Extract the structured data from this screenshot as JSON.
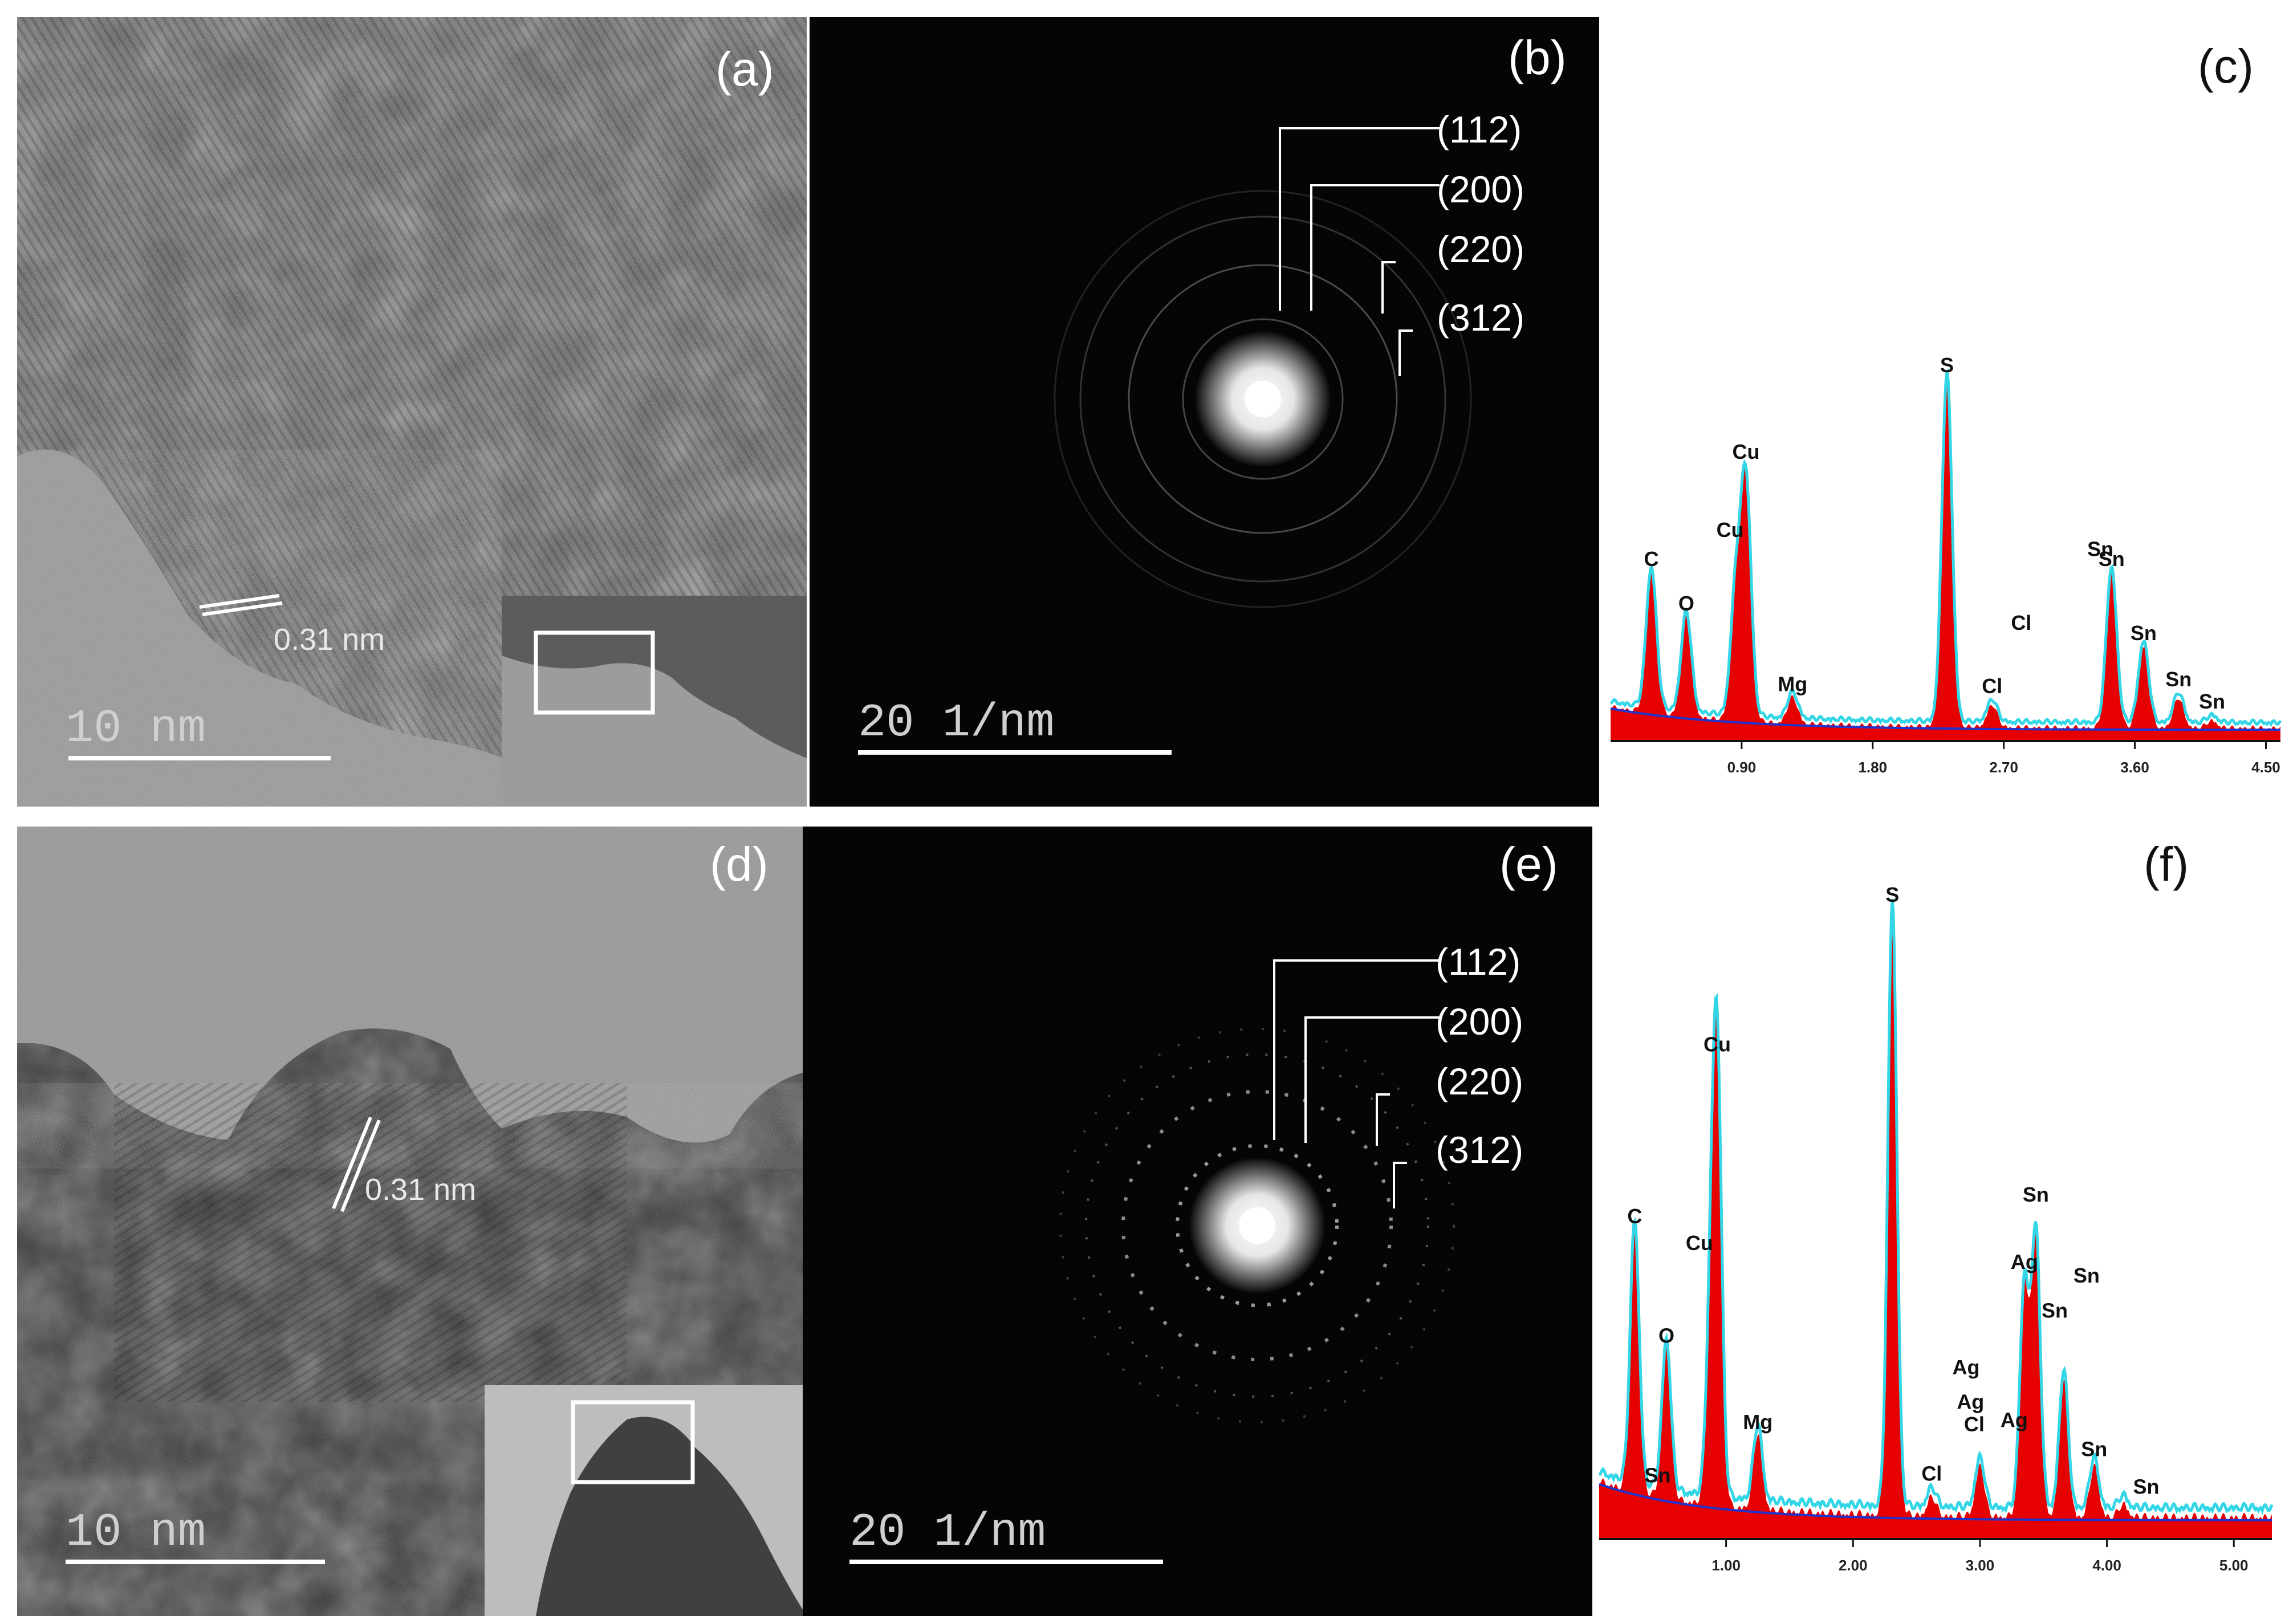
{
  "panels": {
    "a": {
      "letter": "(a)",
      "scale_bar": "10 nm",
      "lattice": "0.31 nm"
    },
    "b": {
      "letter": "(b)",
      "scale_bar": "20 1/nm",
      "rings": [
        "(112)",
        "(200)",
        "(220)",
        "(312)"
      ]
    },
    "c": {
      "letter": "(c)"
    },
    "d": {
      "letter": "(d)",
      "scale_bar": "10 nm",
      "lattice": "0.31 nm"
    },
    "e": {
      "letter": "(e)",
      "scale_bar": "20 1/nm",
      "rings": [
        "(112)",
        "(200)",
        "(220)",
        "(312)"
      ]
    },
    "f": {
      "letter": "(f)"
    }
  },
  "chart_data": [
    {
      "type": "line",
      "panel": "(c)",
      "xlim": [
        0.0,
        4.6
      ],
      "ylim": [
        0,
        100
      ],
      "xticks": [
        "0.90",
        "1.80",
        "2.70",
        "3.60",
        "4.50"
      ],
      "xtick_values": [
        0.9,
        1.8,
        2.7,
        3.6,
        4.5
      ],
      "peaks": [
        {
          "label": "C",
          "x": 0.28,
          "height": 38
        },
        {
          "label": "O",
          "x": 0.52,
          "height": 27
        },
        {
          "label": "Cu",
          "x": 0.93,
          "height": 63
        },
        {
          "label": "Cu",
          "x": 0.86,
          "height": 34
        },
        {
          "label": "Mg",
          "x": 1.25,
          "height": 7
        },
        {
          "label": "S",
          "x": 2.31,
          "height": 94
        },
        {
          "label": "Cl",
          "x": 2.62,
          "height": 6
        },
        {
          "label": "Cl",
          "x": 2.82,
          "height": 0
        },
        {
          "label": "Sn",
          "x": 3.05,
          "height": 0
        },
        {
          "label": "Sn",
          "x": 3.44,
          "height": 42
        },
        {
          "label": "Sn",
          "x": 3.66,
          "height": 22
        },
        {
          "label": "Sn",
          "x": 3.9,
          "height": 8
        },
        {
          "label": "Sn",
          "x": 4.13,
          "height": 2
        }
      ]
    },
    {
      "type": "line",
      "panel": "(f)",
      "xlim": [
        0.0,
        5.3
      ],
      "ylim": [
        0,
        100
      ],
      "xticks": [
        "1.00",
        "2.00",
        "3.00",
        "4.00",
        "5.00"
      ],
      "xtick_values": [
        1.0,
        2.0,
        3.0,
        4.0,
        5.0
      ],
      "peaks": [
        {
          "label": "C",
          "x": 0.28,
          "height": 42
        },
        {
          "label": "O",
          "x": 0.53,
          "height": 24
        },
        {
          "label": "Sn",
          "x": 0.55,
          "height": 0
        },
        {
          "label": "Cu",
          "x": 0.93,
          "height": 68
        },
        {
          "label": "Cu",
          "x": 0.88,
          "height": 28
        },
        {
          "label": "Mg",
          "x": 1.25,
          "height": 12
        },
        {
          "label": "S",
          "x": 2.31,
          "height": 97
        },
        {
          "label": "Ag",
          "x": 2.98,
          "height": 0
        },
        {
          "label": "Cl",
          "x": 2.62,
          "height": 3
        },
        {
          "label": "Ag",
          "x": 3.15,
          "height": 0
        },
        {
          "label": "Cl",
          "x": 2.82,
          "height": 0
        },
        {
          "label": "Ag",
          "x": 3.0,
          "height": 8
        },
        {
          "label": "Sn",
          "x": 3.05,
          "height": 0
        },
        {
          "label": "Ag",
          "x": 3.35,
          "height": 36
        },
        {
          "label": "Sn",
          "x": 3.44,
          "height": 44
        },
        {
          "label": "Sn",
          "x": 3.66,
          "height": 22
        },
        {
          "label": "Sn",
          "x": 3.9,
          "height": 8
        },
        {
          "label": "Sn",
          "x": 4.13,
          "height": 2
        }
      ]
    }
  ]
}
